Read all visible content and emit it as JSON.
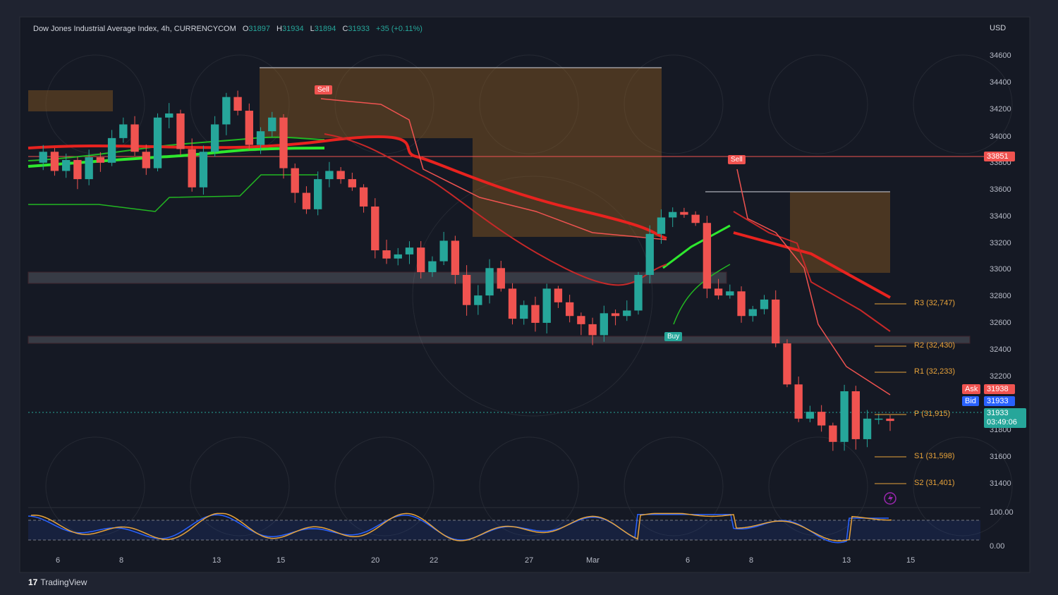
{
  "legend": {
    "symbol": "Dow Jones Industrial Average Index, 4h, CURRENCYCOM",
    "o_label": "O",
    "o_val": "31897",
    "h_label": "H",
    "h_val": "31934",
    "l_label": "L",
    "l_val": "31894",
    "c_label": "C",
    "c_val": "31933",
    "change": "+35 (+0.11%)"
  },
  "currency": "USD",
  "price_axis": [
    "34600",
    "34400",
    "34200",
    "34000",
    "33800",
    "33600",
    "33400",
    "33200",
    "33000",
    "32800",
    "32600",
    "32400",
    "32200",
    "31800",
    "31600",
    "31400"
  ],
  "date_axis": [
    "6",
    "8",
    "13",
    "15",
    "20",
    "22",
    "27",
    "Mar",
    "6",
    "8",
    "13",
    "15"
  ],
  "tags": {
    "red_line": "33851",
    "ask_label": "Ask",
    "ask_val": "31938",
    "bid_label": "Bid",
    "bid_val": "31933",
    "last_val": "31933",
    "countdown": "03:49:06"
  },
  "pivots": {
    "r3": "R3 (32,747)",
    "r2": "R2 (32,430)",
    "r1": "R1 (32,233)",
    "p": "P (31,915)",
    "s1": "S1 (31,598)",
    "s2": "S2 (31,401)"
  },
  "signals": {
    "sell1": "Sell",
    "sell2": "Sell",
    "buy": "Buy"
  },
  "oscillator_axis": {
    "top": "100.00",
    "bottom": "0.00"
  },
  "brand": "TradingView",
  "colors": {
    "up": "#26a69a",
    "down": "#f05350",
    "ma_bull": "#2ee82e",
    "ma_bear": "#e8231f",
    "pivot": "#e8a33a",
    "ask": "#f05350",
    "bid": "#2962ff"
  },
  "chart_data": {
    "type": "candlestick",
    "ylim": [
      31300,
      34700
    ],
    "x_ticks": [
      "6",
      "8",
      "13",
      "15",
      "20",
      "22",
      "27",
      "Mar",
      "6",
      "8",
      "13",
      "15"
    ],
    "close_path": [
      33820,
      33900,
      33760,
      33840,
      33700,
      33860,
      33820,
      34000,
      34100,
      33900,
      33780,
      34150,
      34180,
      33920,
      33640,
      33900,
      34100,
      34300,
      34200,
      33950,
      34050,
      34150,
      33780,
      33600,
      33480,
      33700,
      33760,
      33700,
      33640,
      33500,
      33180,
      33120,
      33150,
      33200,
      33020,
      33100,
      33250,
      33000,
      32780,
      32850,
      33050,
      32900,
      32680,
      32780,
      32650,
      32900,
      32800,
      32700,
      32640,
      32560,
      32720,
      32700,
      32740,
      33000,
      33300,
      33420,
      33460,
      33440,
      33380,
      32900,
      32850,
      32880,
      32700,
      32750,
      32820,
      32500,
      32200,
      31950,
      32000,
      31900,
      31780,
      32150,
      31800,
      31950,
      31950,
      31933
    ],
    "pivots": {
      "R3": 32747,
      "R2": 32430,
      "R1": 32233,
      "P": 31915,
      "S1": 31598,
      "S2": 31401
    },
    "price_line": 33851,
    "last": 31933
  }
}
